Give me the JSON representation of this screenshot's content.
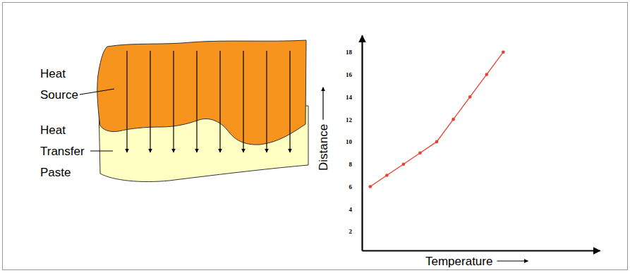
{
  "diagram": {
    "heat_source": [
      "Heat",
      "Source"
    ],
    "paste": [
      "Heat",
      "Transfer",
      "Paste"
    ]
  },
  "chart_data": {
    "type": "line",
    "x_label": "Temperature",
    "y_label": "Distance",
    "x": [
      1,
      2,
      3,
      4,
      5,
      6,
      7,
      8,
      9
    ],
    "values": [
      6,
      7,
      8,
      9,
      10,
      12,
      14,
      16,
      18
    ],
    "color": "#e8402f",
    "marker": "circle",
    "xlim": [
      0.5,
      14.8
    ],
    "ylim": [
      0.3,
      19.5
    ],
    "yticks": [
      2,
      4,
      6,
      8,
      10,
      12,
      14,
      16,
      18
    ],
    "tick_labels": "y",
    "grid": false
  }
}
